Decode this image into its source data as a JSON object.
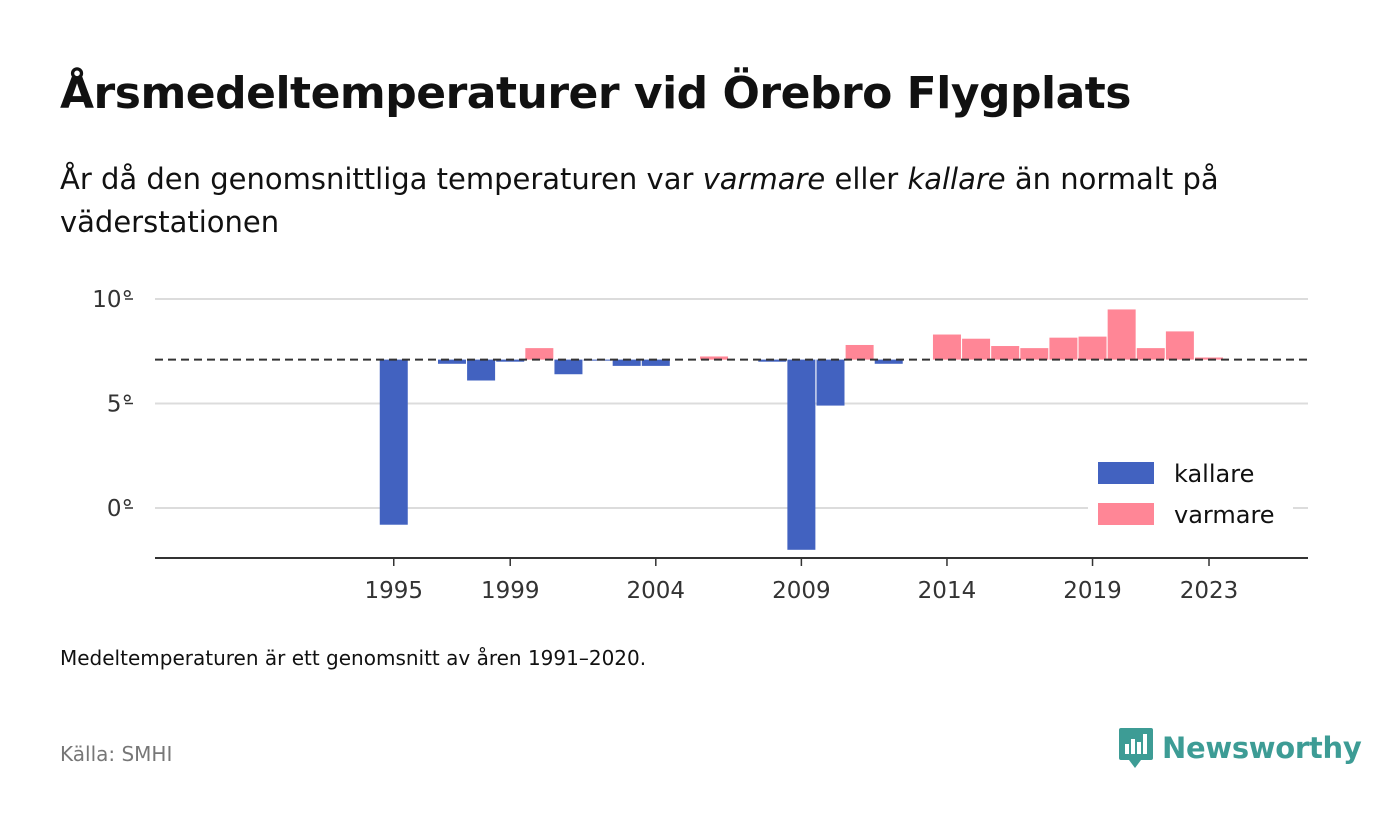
{
  "title": "Årsmedeltemperaturer vid Örebro Flygplats",
  "subtitle": {
    "part1": "År då den genomsnittliga temperaturen var ",
    "warm_word": "varmare",
    "part2": " eller ",
    "cold_word": "kallare",
    "part3": " än normalt på väderstationen"
  },
  "note": "Medeltemperaturen är ett genomsnitt av åren 1991–2020.",
  "source": "Källa: SMHI",
  "brand": "Newsworthy",
  "colors": {
    "cold": "#4262c0",
    "warm": "#ff8696",
    "brand": "#3d9c95"
  },
  "chart_data": {
    "type": "bar",
    "baseline": 7.1,
    "ylim": [
      -2.4,
      10
    ],
    "yticks": [
      0,
      5,
      10
    ],
    "ytick_labels": [
      "0°",
      "5°",
      "10°"
    ],
    "xticks": [
      1995,
      1999,
      2004,
      2009,
      2014,
      2019,
      2023
    ],
    "x_range": [
      1986.8,
      2026.4
    ],
    "legend": {
      "position": "bottom-right",
      "entries": [
        "kallare",
        "varmare"
      ]
    },
    "grid": true,
    "series": [
      {
        "name": "kallare",
        "color": "#4262c0",
        "points": [
          {
            "year": 1995,
            "value": -0.8
          },
          {
            "year": 1997,
            "value": 6.9
          },
          {
            "year": 1998,
            "value": 6.1
          },
          {
            "year": 1999,
            "value": 7.0
          },
          {
            "year": 2001,
            "value": 6.4
          },
          {
            "year": 2002,
            "value": 7.05
          },
          {
            "year": 2003,
            "value": 6.8
          },
          {
            "year": 2004,
            "value": 6.8
          },
          {
            "year": 2008,
            "value": 7.0
          },
          {
            "year": 2009,
            "value": -2.0
          },
          {
            "year": 2010,
            "value": 4.9
          },
          {
            "year": 2012,
            "value": 6.9
          }
        ]
      },
      {
        "name": "varmare",
        "color": "#ff8696",
        "points": [
          {
            "year": 2000,
            "value": 7.65
          },
          {
            "year": 2006,
            "value": 7.25
          },
          {
            "year": 2011,
            "value": 7.8
          },
          {
            "year": 2014,
            "value": 8.3
          },
          {
            "year": 2015,
            "value": 8.1
          },
          {
            "year": 2016,
            "value": 7.75
          },
          {
            "year": 2017,
            "value": 7.65
          },
          {
            "year": 2018,
            "value": 8.15
          },
          {
            "year": 2019,
            "value": 8.2
          },
          {
            "year": 2020,
            "value": 9.5
          },
          {
            "year": 2021,
            "value": 7.65
          },
          {
            "year": 2022,
            "value": 8.45
          },
          {
            "year": 2023,
            "value": 7.2
          }
        ]
      }
    ]
  }
}
